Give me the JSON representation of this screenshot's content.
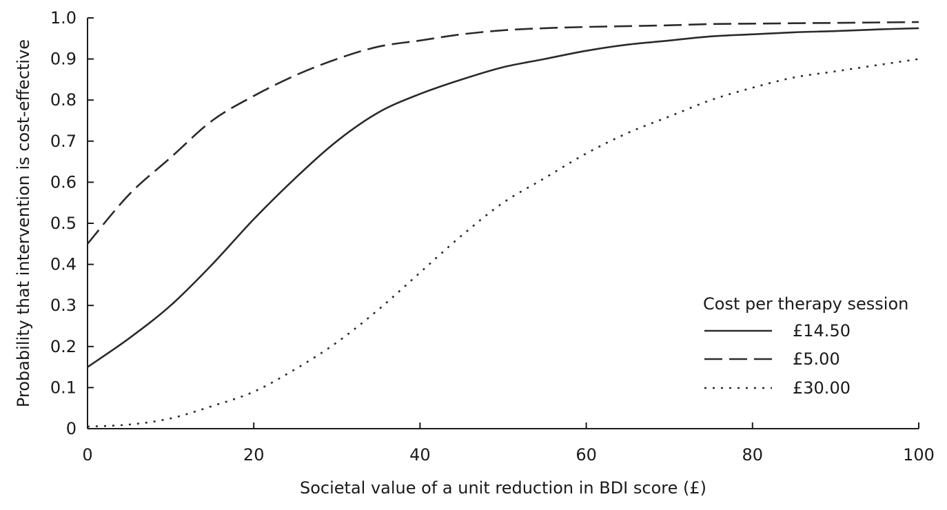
{
  "chart_data": {
    "type": "line",
    "title": "",
    "xlabel": "Societal value of a unit reduction in BDI score (£)",
    "ylabel": "Probability that intervention is cost-effective",
    "xlim": [
      0,
      100
    ],
    "ylim": [
      0,
      1.0
    ],
    "x_ticks": [
      "0",
      "20",
      "40",
      "60",
      "80",
      "100"
    ],
    "y_ticks": [
      "0",
      "0.1",
      "0.2",
      "0.3",
      "0.4",
      "0.5",
      "0.6",
      "0.7",
      "0.8",
      "0.9",
      "1.0"
    ],
    "grid": false,
    "legend": {
      "title": "Cost per therapy session",
      "position": "bottom-right"
    },
    "series": [
      {
        "name": "£14.50",
        "style": "solid",
        "x": [
          0,
          5,
          10,
          15,
          20,
          25,
          30,
          35,
          40,
          45,
          50,
          55,
          60,
          65,
          70,
          75,
          80,
          85,
          90,
          95,
          100
        ],
        "y": [
          0.15,
          0.22,
          0.3,
          0.4,
          0.51,
          0.61,
          0.7,
          0.77,
          0.815,
          0.85,
          0.88,
          0.9,
          0.92,
          0.935,
          0.945,
          0.955,
          0.96,
          0.965,
          0.968,
          0.972,
          0.975
        ]
      },
      {
        "name": "£5.00",
        "style": "dashed",
        "x": [
          0,
          5,
          10,
          15,
          20,
          25,
          30,
          35,
          40,
          45,
          50,
          55,
          60,
          65,
          70,
          75,
          80,
          85,
          90,
          95,
          100
        ],
        "y": [
          0.45,
          0.57,
          0.66,
          0.75,
          0.81,
          0.86,
          0.9,
          0.93,
          0.945,
          0.96,
          0.97,
          0.975,
          0.978,
          0.98,
          0.982,
          0.985,
          0.986,
          0.987,
          0.988,
          0.989,
          0.99
        ]
      },
      {
        "name": "£30.00",
        "style": "dotted",
        "x": [
          0,
          5,
          10,
          15,
          20,
          25,
          30,
          35,
          40,
          45,
          50,
          55,
          60,
          65,
          70,
          75,
          80,
          85,
          90,
          95,
          100
        ],
        "y": [
          0.005,
          0.01,
          0.025,
          0.055,
          0.09,
          0.145,
          0.21,
          0.29,
          0.38,
          0.47,
          0.55,
          0.61,
          0.67,
          0.72,
          0.76,
          0.8,
          0.83,
          0.855,
          0.87,
          0.885,
          0.9
        ]
      }
    ]
  }
}
